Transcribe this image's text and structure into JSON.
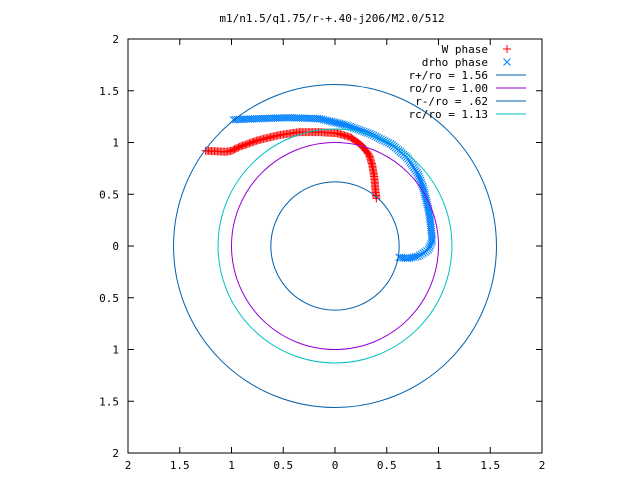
{
  "chart_data": {
    "type": "scatter",
    "title": "m1/n1.5/q1.75/r-+.40-j206/M2.0/512",
    "xlim": [
      -2,
      2
    ],
    "ylim": [
      -2,
      2
    ],
    "grid": false,
    "legend_position": "top-right",
    "x_ticks": [
      -2,
      -1.5,
      -1,
      -0.5,
      0,
      0.5,
      1,
      1.5,
      2
    ],
    "x_tick_labels": [
      "2",
      "1.5",
      "1",
      "0.5",
      "0",
      "0.5",
      "1",
      "1.5",
      "2"
    ],
    "y_ticks": [
      2,
      1.5,
      1,
      0.5,
      0,
      -0.5,
      -1,
      -1.5,
      -2
    ],
    "y_tick_labels": [
      "2",
      "1.5",
      "1",
      "0.5",
      "0",
      "0.5",
      "1",
      "1.5",
      "2"
    ],
    "series": [
      {
        "name": "W phase",
        "kind": "points",
        "marker": "+",
        "color": "#ff0000",
        "anchors": [
          [
            0.4,
            0.46
          ],
          [
            0.39,
            0.55
          ],
          [
            0.38,
            0.66
          ],
          [
            0.36,
            0.78
          ],
          [
            0.33,
            0.88
          ],
          [
            0.26,
            0.97
          ],
          [
            0.15,
            1.05
          ],
          [
            0.02,
            1.09
          ],
          [
            -0.15,
            1.1
          ],
          [
            -0.35,
            1.1
          ],
          [
            -0.55,
            1.07
          ],
          [
            -0.75,
            1.02
          ],
          [
            -0.92,
            0.96
          ],
          [
            -1.0,
            0.92
          ],
          [
            -1.05,
            0.91
          ],
          [
            -1.25,
            0.92
          ]
        ],
        "count": 150
      },
      {
        "name": "drho phase",
        "kind": "points",
        "marker": "x",
        "color": "#0080ff",
        "anchors": [
          [
            0.62,
            -0.11
          ],
          [
            0.7,
            -0.12
          ],
          [
            0.8,
            -0.1
          ],
          [
            0.9,
            -0.04
          ],
          [
            0.94,
            0.05
          ],
          [
            0.93,
            0.15
          ],
          [
            0.92,
            0.25
          ],
          [
            0.9,
            0.37
          ],
          [
            0.88,
            0.45
          ],
          [
            0.85,
            0.57
          ],
          [
            0.8,
            0.7
          ],
          [
            0.7,
            0.85
          ],
          [
            0.55,
            0.98
          ],
          [
            0.35,
            1.08
          ],
          [
            0.1,
            1.17
          ],
          [
            -0.15,
            1.23
          ],
          [
            -0.45,
            1.24
          ],
          [
            -0.75,
            1.23
          ],
          [
            -0.98,
            1.22
          ]
        ],
        "count": 150
      },
      {
        "name": "r+/ro = 1.56",
        "kind": "circle",
        "r": 1.56,
        "color": "#0060ad"
      },
      {
        "name": "ro/ro = 1.00",
        "kind": "circle",
        "r": 1.0,
        "color": "#9400d3"
      },
      {
        "name": "r-/ro = .62",
        "kind": "circle",
        "r": 0.62,
        "color": "#0060ad"
      },
      {
        "name": "rc/ro = 1.13",
        "kind": "circle",
        "r": 1.13,
        "color": "#00c0c0"
      }
    ]
  }
}
